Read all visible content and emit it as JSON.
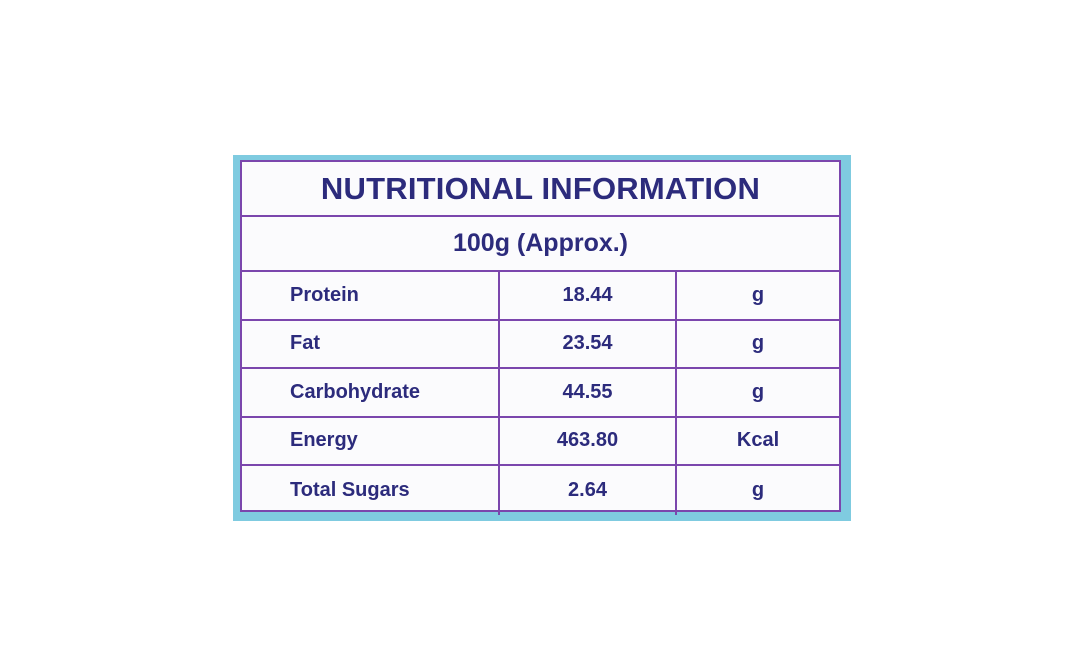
{
  "header": {
    "title": "NUTRITIONAL INFORMATION",
    "subtitle": "100g (Approx.)"
  },
  "table": {
    "rows": [
      [
        "Protein",
        "18.44",
        "g"
      ],
      [
        "Fat",
        "23.54",
        "g"
      ],
      [
        "Carbohydrate",
        "44.55",
        "g"
      ],
      [
        "Energy",
        "463.80",
        "Kcal"
      ],
      [
        "Total Sugars",
        "2.64",
        "g"
      ]
    ]
  }
}
